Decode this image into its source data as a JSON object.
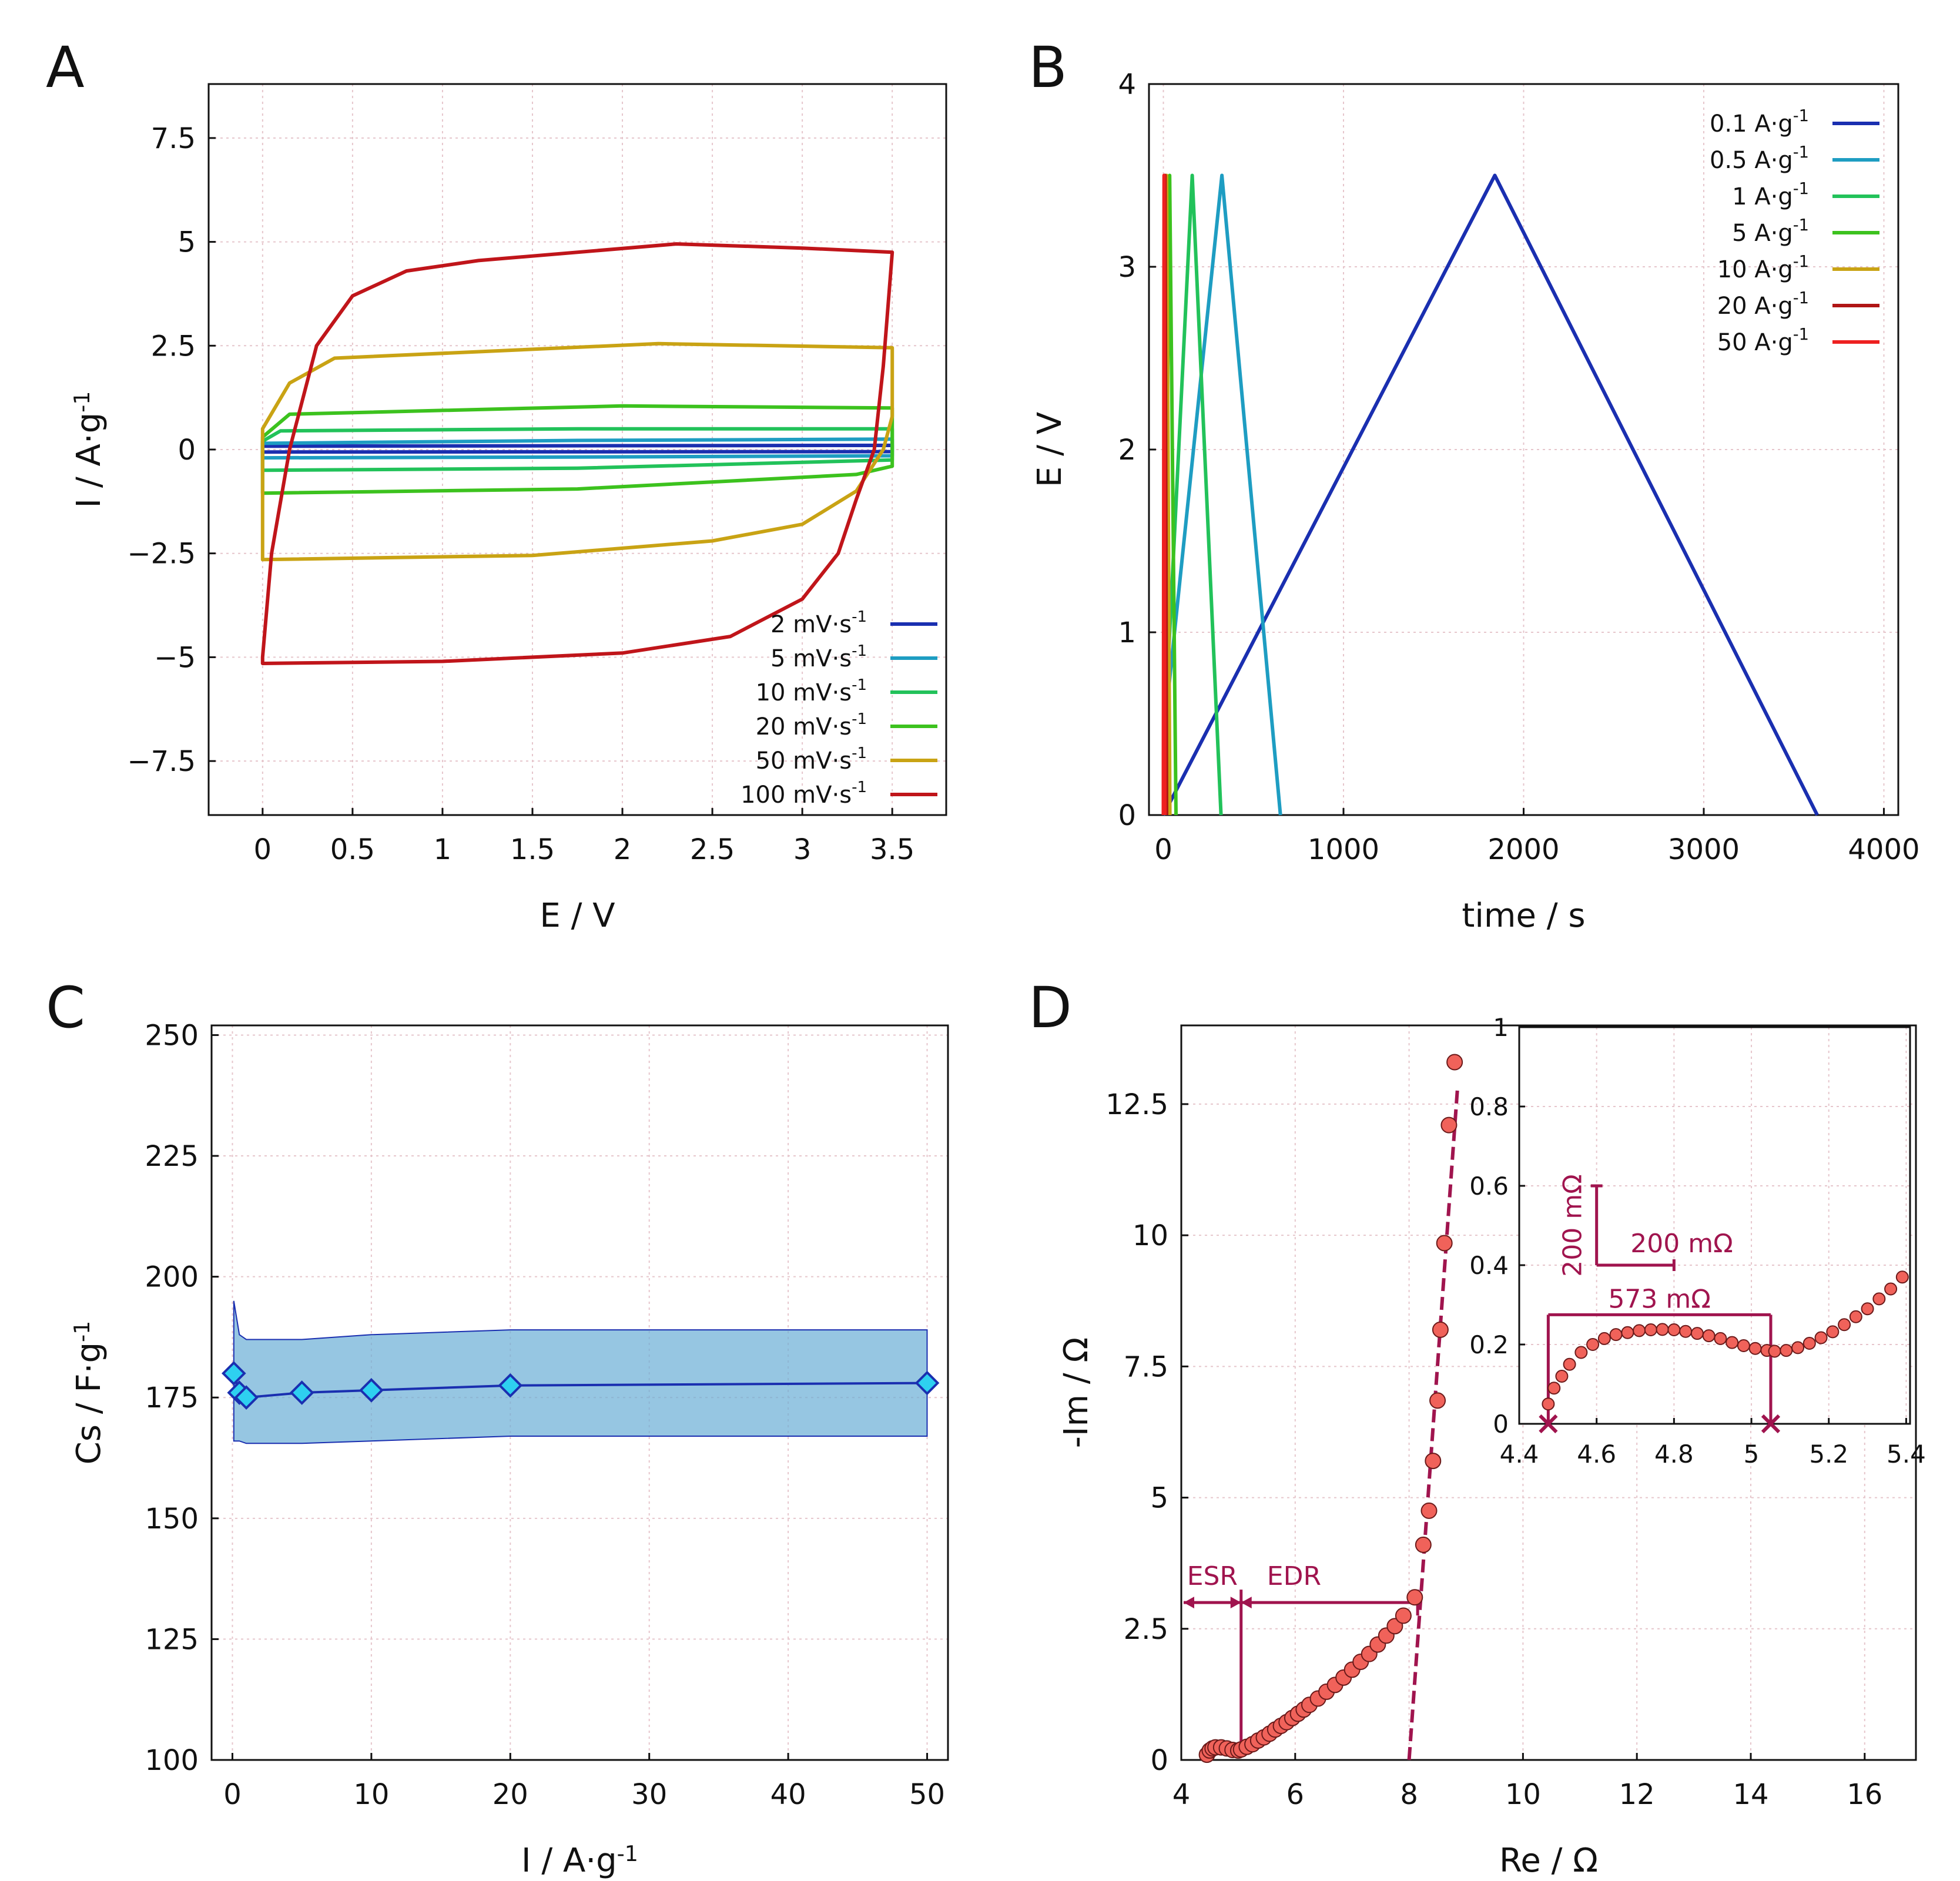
{
  "figure": {
    "panel_letters": [
      "A",
      "B",
      "C",
      "D"
    ]
  },
  "chart_data": [
    {
      "id": "A",
      "type": "line",
      "title": "",
      "xlabel": "E / V",
      "ylabel": "I / A·g-1",
      "xlim": [
        -0.3,
        3.8
      ],
      "ylim": [
        -8.8,
        8.8
      ],
      "xticks": [
        0,
        0.5,
        1,
        1.5,
        2,
        2.5,
        3,
        3.5
      ],
      "xtick_labels": [
        "0",
        "0.5",
        "1",
        "1.5",
        "2",
        "2.5",
        "3",
        "3.5"
      ],
      "yticks": [
        7.5,
        5,
        2.5,
        0,
        -2.5,
        -5,
        -7.5
      ],
      "ytick_labels": [
        "7.5",
        "5",
        "2.5",
        "0",
        "−2.5",
        "−5",
        "−7.5"
      ],
      "grid": true,
      "legend_position": "bottom-right",
      "series": [
        {
          "name": "2 mV·s-1",
          "color": "#1a2fb0",
          "upper": [
            [
              0,
              0.08
            ],
            [
              3.5,
              0.1
            ]
          ],
          "lower": [
            [
              0,
              -0.06
            ],
            [
              3.5,
              -0.05
            ]
          ]
        },
        {
          "name": "5 mV·s-1",
          "color": "#1e9dc2",
          "upper": [
            [
              0,
              0.15
            ],
            [
              1.75,
              0.22
            ],
            [
              3.5,
              0.25
            ]
          ],
          "lower": [
            [
              0,
              -0.2
            ],
            [
              1.75,
              -0.18
            ],
            [
              3.5,
              -0.15
            ]
          ]
        },
        {
          "name": "10 mV·s-1",
          "color": "#22c25a",
          "upper": [
            [
              0,
              0.2
            ],
            [
              0.1,
              0.45
            ],
            [
              1.75,
              0.5
            ],
            [
              3.5,
              0.5
            ]
          ],
          "lower": [
            [
              0,
              -0.5
            ],
            [
              1.75,
              -0.45
            ],
            [
              3.5,
              -0.25
            ]
          ]
        },
        {
          "name": "20 mV·s-1",
          "color": "#3cc21e",
          "upper": [
            [
              0,
              0.3
            ],
            [
              0.15,
              0.85
            ],
            [
              2,
              1.05
            ],
            [
              3.5,
              1.0
            ]
          ],
          "lower": [
            [
              0,
              -1.05
            ],
            [
              1.75,
              -0.95
            ],
            [
              3.3,
              -0.6
            ],
            [
              3.5,
              -0.4
            ]
          ]
        },
        {
          "name": "50 mV·s-1",
          "color": "#c9a314",
          "upper": [
            [
              0,
              0.5
            ],
            [
              0.15,
              1.6
            ],
            [
              0.4,
              2.2
            ],
            [
              2.2,
              2.55
            ],
            [
              3.5,
              2.45
            ]
          ],
          "lower": [
            [
              0,
              -2.65
            ],
            [
              1.5,
              -2.55
            ],
            [
              2.5,
              -2.2
            ],
            [
              3.0,
              -1.8
            ],
            [
              3.3,
              -1.0
            ],
            [
              3.45,
              0
            ],
            [
              3.5,
              0.8
            ]
          ]
        },
        {
          "name": "100 mV·s-1",
          "color": "#c0151a",
          "upper": [
            [
              0,
              -5.0
            ],
            [
              0.05,
              -2.5
            ],
            [
              0.15,
              0
            ],
            [
              0.3,
              2.5
            ],
            [
              0.5,
              3.7
            ],
            [
              0.8,
              4.3
            ],
            [
              1.2,
              4.55
            ],
            [
              2.3,
              4.95
            ],
            [
              3.0,
              4.85
            ],
            [
              3.5,
              4.75
            ]
          ],
          "lower": [
            [
              0,
              -5.15
            ],
            [
              1.0,
              -5.1
            ],
            [
              2.0,
              -4.9
            ],
            [
              2.6,
              -4.5
            ],
            [
              3.0,
              -3.6
            ],
            [
              3.2,
              -2.5
            ],
            [
              3.3,
              -1.2
            ],
            [
              3.4,
              0
            ],
            [
              3.45,
              2.0
            ],
            [
              3.5,
              4.75
            ]
          ]
        }
      ]
    },
    {
      "id": "B",
      "type": "line",
      "title": "",
      "xlabel": "time / s",
      "ylabel": "E / V",
      "xlim": [
        -80,
        4080
      ],
      "ylim": [
        0,
        4
      ],
      "xticks": [
        0,
        1000,
        2000,
        3000,
        4000
      ],
      "xtick_labels": [
        "0",
        "1000",
        "2000",
        "3000",
        "4000"
      ],
      "yticks": [
        0,
        1,
        2,
        3,
        4
      ],
      "ytick_labels": [
        "0",
        "1",
        "2",
        "3",
        "4"
      ],
      "grid": true,
      "legend_position": "top-right",
      "series": [
        {
          "name": "0.1 A·g-1",
          "color": "#1a2fb0",
          "x": [
            0,
            1840,
            3630
          ],
          "y": [
            0,
            3.5,
            0
          ]
        },
        {
          "name": "0.5 A·g-1",
          "color": "#1e9dc2",
          "x": [
            0,
            20,
            325,
            650
          ],
          "y": [
            0,
            0.6,
            3.5,
            0
          ]
        },
        {
          "name": "1 A·g-1",
          "color": "#22c25a",
          "x": [
            0,
            15,
            160,
            320
          ],
          "y": [
            0,
            0.6,
            3.5,
            0
          ]
        },
        {
          "name": "5 A·g-1",
          "color": "#3cc21e",
          "x": [
            0,
            5,
            35,
            70
          ],
          "y": [
            0,
            0.5,
            3.5,
            0
          ]
        },
        {
          "name": "10 A·g-1",
          "color": "#c9a314",
          "x": [
            0,
            3,
            18,
            36
          ],
          "y": [
            0,
            0.6,
            3.5,
            0
          ]
        },
        {
          "name": "20 A·g-1",
          "color": "#b01515",
          "x": [
            0,
            9,
            18
          ],
          "y": [
            0,
            3.5,
            0
          ]
        },
        {
          "name": "50 A·g-1",
          "color": "#ee2020",
          "x": [
            0,
            4,
            8
          ],
          "y": [
            0,
            3.5,
            0
          ]
        }
      ]
    },
    {
      "id": "C",
      "type": "line",
      "title": "",
      "xlabel": "I / A·g-1",
      "ylabel": "Cs / F·g-1",
      "xlim": [
        -1.5,
        51.5
      ],
      "ylim": [
        100,
        252
      ],
      "xticks": [
        0,
        10,
        20,
        30,
        40,
        50
      ],
      "xtick_labels": [
        "0",
        "10",
        "20",
        "30",
        "40",
        "50"
      ],
      "yticks": [
        100,
        125,
        150,
        175,
        200,
        225,
        250
      ],
      "ytick_labels": [
        "100",
        "125",
        "150",
        "175",
        "200",
        "225",
        "250"
      ],
      "grid": true,
      "series": [
        {
          "name": "Cs",
          "color": "#1a2fb0",
          "marker_fill": "#2ed0f0",
          "x": [
            0.1,
            0.5,
            1,
            5,
            10,
            20,
            50
          ],
          "y": [
            180,
            176,
            175,
            176,
            176.5,
            177.5,
            178
          ]
        }
      ],
      "band": {
        "color": "#6aaed6",
        "x": [
          0.1,
          0.5,
          1,
          5,
          10,
          20,
          50
        ],
        "upper": [
          195,
          188,
          187,
          187,
          188,
          189,
          189
        ],
        "lower": [
          166,
          166,
          165.5,
          165.5,
          166,
          167,
          167
        ]
      }
    },
    {
      "id": "D",
      "type": "scatter",
      "title": "",
      "xlabel": "Re / Ω",
      "ylabel": "-Im / Ω",
      "xlim": [
        4,
        16.9
      ],
      "ylim": [
        0,
        14
      ],
      "xticks": [
        4,
        6,
        8,
        10,
        12,
        14,
        16
      ],
      "xtick_labels": [
        "4",
        "6",
        "8",
        "10",
        "12",
        "14",
        "16"
      ],
      "yticks": [
        0,
        2.5,
        5,
        7.5,
        10,
        12.5
      ],
      "ytick_labels": [
        "0",
        "2.5",
        "5",
        "7.5",
        "10",
        "12.5"
      ],
      "grid": true,
      "marker_color": "#f0625a",
      "points_x": [
        4.45,
        4.5,
        4.55,
        4.6,
        4.7,
        4.8,
        4.9,
        5.0,
        5.05,
        5.15,
        5.25,
        5.35,
        5.45,
        5.55,
        5.65,
        5.75,
        5.85,
        5.95,
        6.05,
        6.15,
        6.25,
        6.4,
        6.55,
        6.7,
        6.85,
        7.0,
        7.15,
        7.3,
        7.45,
        7.6,
        7.75,
        7.9,
        8.1,
        8.25,
        8.35,
        8.42,
        8.5,
        8.55,
        8.62,
        8.7,
        8.8
      ],
      "points_y": [
        0.1,
        0.18,
        0.22,
        0.24,
        0.24,
        0.22,
        0.19,
        0.18,
        0.2,
        0.25,
        0.3,
        0.37,
        0.43,
        0.5,
        0.58,
        0.65,
        0.72,
        0.8,
        0.88,
        0.96,
        1.05,
        1.17,
        1.3,
        1.43,
        1.57,
        1.72,
        1.87,
        2.02,
        2.2,
        2.37,
        2.55,
        2.75,
        3.1,
        4.1,
        4.75,
        5.7,
        6.85,
        8.2,
        9.85,
        12.1,
        13.3
      ],
      "fit_line": {
        "x": [
          8.0,
          8.85
        ],
        "y": [
          0,
          12.8
        ],
        "color": "#a0144e"
      },
      "annotations": {
        "esr_label": "ESR",
        "edr_label": "EDR",
        "esr_range": [
          4.0,
          5.05
        ],
        "edr_range": [
          5.05,
          8.15
        ],
        "arrow_y": 3.0
      },
      "inset": {
        "xlim": [
          4.4,
          5.41
        ],
        "ylim": [
          0,
          1.0
        ],
        "xticks": [
          4.4,
          4.6,
          4.8,
          5,
          5.2,
          5.4
        ],
        "xtick_labels": [
          "4.4",
          "4.6",
          "4.8",
          "5",
          "5.2",
          "5.4"
        ],
        "yticks": [
          0,
          0.2,
          0.4,
          0.6,
          0.8,
          1
        ],
        "ytick_labels": [
          "0",
          "0.2",
          "0.4",
          "0.6",
          "0.8",
          "1"
        ],
        "points_x": [
          4.475,
          4.49,
          4.51,
          4.53,
          4.56,
          4.59,
          4.62,
          4.65,
          4.68,
          4.71,
          4.74,
          4.77,
          4.8,
          4.83,
          4.86,
          4.89,
          4.92,
          4.95,
          4.98,
          5.01,
          5.04,
          5.06,
          5.09,
          5.12,
          5.15,
          5.18,
          5.21,
          5.24,
          5.27,
          5.3,
          5.33,
          5.36,
          5.39
        ],
        "points_y": [
          0.05,
          0.09,
          0.12,
          0.15,
          0.18,
          0.2,
          0.215,
          0.225,
          0.23,
          0.235,
          0.237,
          0.238,
          0.237,
          0.233,
          0.228,
          0.222,
          0.215,
          0.205,
          0.197,
          0.19,
          0.185,
          0.183,
          0.185,
          0.192,
          0.203,
          0.217,
          0.232,
          0.25,
          0.27,
          0.29,
          0.315,
          0.34,
          0.37
        ],
        "scale_v_label": "200 mΩ",
        "scale_h_label": "200 mΩ",
        "span_label": "573 mΩ",
        "span_x": [
          4.475,
          5.05
        ],
        "span_y": 0.275
      }
    }
  ]
}
